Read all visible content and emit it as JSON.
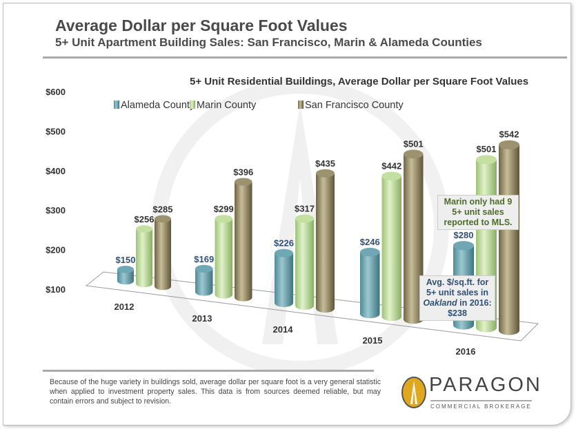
{
  "title": "Average Dollar per Square Foot Values",
  "subtitle": "5+ Unit Apartment Building Sales: San Francisco, Marin & Alameda Counties",
  "disclaimer": "Because of the huge variety in buildings sold, average dollar per square foot is a very general statistic when applied to investment property sales. This data is from sources deemed reliable, but may contain errors and subject to revision.",
  "brand": {
    "name": "PARAGON",
    "tagline": "COMMERCIAL BROKERAGE"
  },
  "chart_data": {
    "type": "bar",
    "title": "5+ Unit Residential Buildings, Average Dollar per Square Foot Values",
    "categories": [
      "2012",
      "2013",
      "2014",
      "2015",
      "2016"
    ],
    "series": [
      {
        "name": "Alameda County",
        "values": [
          150,
          169,
          226,
          246,
          280
        ],
        "labels": [
          "$150",
          "$169",
          "$226",
          "$246",
          "$280"
        ],
        "color": "#6fa8b4"
      },
      {
        "name": "Marin County",
        "values": [
          256,
          299,
          317,
          442,
          501
        ],
        "labels": [
          "$256",
          "$299",
          "$317",
          "$442",
          "$501"
        ],
        "color": "#c4e0a0"
      },
      {
        "name": "San Francisco County",
        "values": [
          285,
          396,
          435,
          501,
          542
        ],
        "labels": [
          "$285",
          "$396",
          "$435",
          "$501",
          "$542"
        ],
        "color": "#9c9270"
      }
    ],
    "ylim": [
      100,
      600
    ],
    "yticks": [
      "$600",
      "$500",
      "$400",
      "$300",
      "$200",
      "$100"
    ],
    "legend": "top",
    "annotations": [
      "Marin only had 9 5+ unit sales reported to MLS.",
      "Avg. $/sq.ft. for",
      "5+ unit sales in",
      "Oakland",
      "in 2016:",
      "$238"
    ]
  }
}
